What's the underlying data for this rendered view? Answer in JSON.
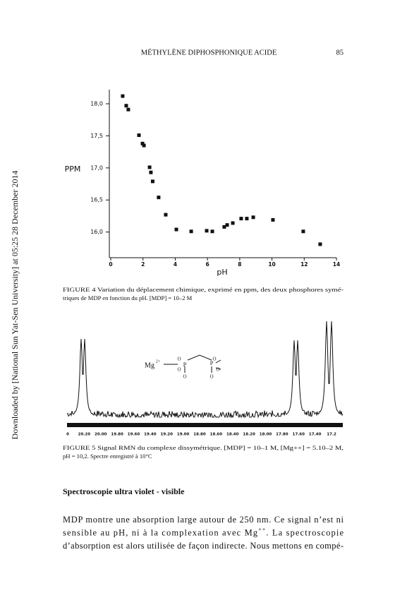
{
  "header": {
    "title": "MÉTHYLÈNE DIPHOSPHONIQUE ACIDE",
    "page": "85"
  },
  "side_note": "Downloaded by [National Sun Yat-Sen University] at 05:25 28 December 2014",
  "chart_data": {
    "type": "scatter",
    "x_label": "pH",
    "y_label": "PPM",
    "color": "#111111",
    "x": [
      0.74,
      0.96,
      1.09,
      1.75,
      1.97,
      2.06,
      2.41,
      2.49,
      2.6,
      2.97,
      3.41,
      4.07,
      4.99,
      5.95,
      6.3,
      7.04,
      7.22,
      7.57,
      8.09,
      8.44,
      8.84,
      10.06,
      11.94,
      12.99
    ],
    "values": [
      18.12,
      17.97,
      17.91,
      17.51,
      17.38,
      17.35,
      17.01,
      16.93,
      16.79,
      16.54,
      16.27,
      16.04,
      16.01,
      16.02,
      16.01,
      16.08,
      16.11,
      16.14,
      16.21,
      16.21,
      16.23,
      16.19,
      16.01,
      15.81
    ],
    "xlim": [
      0,
      14
    ],
    "xticks": [
      0,
      2,
      4,
      6,
      8,
      10,
      12,
      14
    ],
    "ylim": [
      15.6,
      18.22
    ],
    "yticks": [
      {
        "value": 16,
        "label": "16,0"
      },
      {
        "value": 16.5,
        "label": "16,5"
      },
      {
        "value": 17,
        "label": "17,0"
      },
      {
        "value": 17.5,
        "label": "17,5"
      },
      {
        "value": 18,
        "label": "18,0"
      }
    ]
  },
  "figure4": {
    "caption": [
      "FIGURE 4 Variation du déplacement chimique, exprimé en ppm, des deux phosphores symé-",
      "triques de MDP en fonction du pH. [MDP] = 10–2 M"
    ]
  },
  "figure5": {
    "axis_labels": [
      "0",
      "20.20",
      "20.00",
      "19.80",
      "19.60",
      "19.40",
      "19.20",
      "19.00",
      "18.80",
      "18.60",
      "18.40",
      "18.20",
      "18.00",
      "17.80",
      "17.60",
      "17.40",
      "17.2"
    ],
    "molecule": [
      "Mg",
      "2+",
      "O",
      "P",
      "O",
      "O",
      "P",
      "O",
      "O",
      "O"
    ],
    "caption": [
      "FIGURE 5 Signal RMN du complexe dissymétrique. [MDP] = 10–1 M, [Mg++] = 5.10–2 M,",
      "pH = 10,2. Spectre enregistré à 10°C"
    ]
  },
  "section": {
    "title": "Spectroscopie ultra violet - visible",
    "lines": [
      [
        "MDP montre une absorption large autour de 250 nm. Ce signal n’est ni"
      ],
      [
        "sensible au pH, ni à la complexation avec Mg",
        "++",
        ". La spectroscopie"
      ],
      [
        "d’absorption est alors utilisée de façon indirecte. Nous mettons en compé-"
      ]
    ]
  }
}
